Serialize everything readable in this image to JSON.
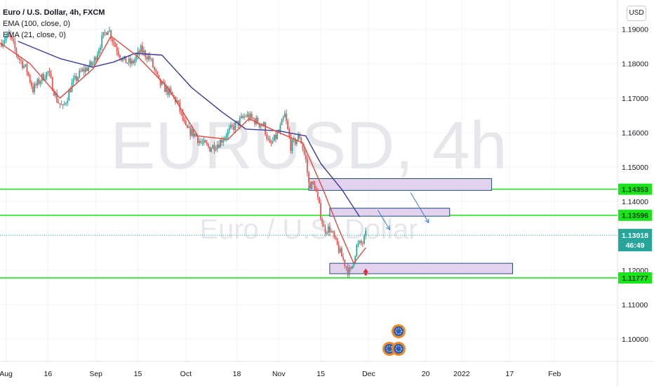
{
  "legend": {
    "symbol": "Euro / U.S. Dollar, 4h, FXCM",
    "ema_long": "EMA (100, close, 0)",
    "ema_short": "EMA (21, close, 0)"
  },
  "currency_button": "USD",
  "watermark": {
    "ticker": "EURUSD, 4h",
    "description": "Euro / U.S. Dollar"
  },
  "colors": {
    "up": "#26a69a",
    "down": "#ef5350",
    "ema100": "#3a3a9c",
    "ema21": "#e8473c",
    "levels": "#19e619",
    "zone_fill": "#e2d2ee",
    "zone_border": "#1f4e79",
    "projection": "#3b78d9",
    "current_price": "#26a69a"
  },
  "price_badges": [
    {
      "value": "1.14353",
      "level": 1.14353
    },
    {
      "value": "1.13596",
      "level": 1.13596
    },
    {
      "value": "1.11777",
      "level": 1.11777
    }
  ],
  "current_price": {
    "value": "1.13018",
    "countdown": "46:49",
    "level": 1.13018
  },
  "chart_data": {
    "type": "candlestick",
    "symbol": "EURUSD",
    "timeframe": "4h",
    "y_axis": {
      "ticks": [
        "1.19000",
        "1.18000",
        "1.17000",
        "1.16000",
        "1.15000",
        "1.14000",
        "1.13000",
        "1.12000",
        "1.11000",
        "1.10000"
      ],
      "range": [
        1.0935,
        1.1985
      ]
    },
    "x_axis": {
      "range": [
        "2021-07-31",
        "2022-02-22"
      ],
      "ticks": [
        {
          "label": "Aug",
          "date": "2021-08-02"
        },
        {
          "label": "16",
          "date": "2021-08-16"
        },
        {
          "label": "Sep",
          "date": "2021-09-01"
        },
        {
          "label": "15",
          "date": "2021-09-15"
        },
        {
          "label": "Oct",
          "date": "2021-10-01"
        },
        {
          "label": "18",
          "date": "2021-10-18"
        },
        {
          "label": "Nov",
          "date": "2021-11-01"
        },
        {
          "label": "15",
          "date": "2021-11-15"
        },
        {
          "label": "Dec",
          "date": "2021-12-01"
        },
        {
          "label": "20",
          "date": "2021-12-20"
        },
        {
          "label": "2022",
          "date": "2022-01-01"
        },
        {
          "label": "17",
          "date": "2022-01-17"
        },
        {
          "label": "Feb",
          "date": "2022-02-01"
        }
      ]
    },
    "close_path": [
      [
        "2021-07-31",
        1.186
      ],
      [
        "2021-08-03",
        1.1885
      ],
      [
        "2021-08-06",
        1.182
      ],
      [
        "2021-08-09",
        1.178
      ],
      [
        "2021-08-11",
        1.1725
      ],
      [
        "2021-08-14",
        1.176
      ],
      [
        "2021-08-16",
        1.1775
      ],
      [
        "2021-08-19",
        1.1695
      ],
      [
        "2021-08-21",
        1.167
      ],
      [
        "2021-08-24",
        1.174
      ],
      [
        "2021-08-27",
        1.1775
      ],
      [
        "2021-08-31",
        1.18
      ],
      [
        "2021-09-03",
        1.187
      ],
      [
        "2021-09-05",
        1.1905
      ],
      [
        "2021-09-07",
        1.186
      ],
      [
        "2021-09-10",
        1.181
      ],
      [
        "2021-09-13",
        1.18
      ],
      [
        "2021-09-16",
        1.184
      ],
      [
        "2021-09-19",
        1.1815
      ],
      [
        "2021-09-22",
        1.1745
      ],
      [
        "2021-09-25",
        1.172
      ],
      [
        "2021-09-28",
        1.169
      ],
      [
        "2021-10-01",
        1.161
      ],
      [
        "2021-10-04",
        1.1595
      ],
      [
        "2021-10-06",
        1.157
      ],
      [
        "2021-10-09",
        1.1555
      ],
      [
        "2021-10-12",
        1.157
      ],
      [
        "2021-10-15",
        1.16
      ],
      [
        "2021-10-18",
        1.1625
      ],
      [
        "2021-10-21",
        1.165
      ],
      [
        "2021-10-24",
        1.1635
      ],
      [
        "2021-10-27",
        1.162
      ],
      [
        "2021-10-29",
        1.156
      ],
      [
        "2021-11-01",
        1.16
      ],
      [
        "2021-11-03",
        1.165
      ],
      [
        "2021-11-05",
        1.156
      ],
      [
        "2021-11-08",
        1.159
      ],
      [
        "2021-11-10",
        1.152
      ],
      [
        "2021-11-11",
        1.145
      ],
      [
        "2021-11-13",
        1.1445
      ],
      [
        "2021-11-16",
        1.132
      ],
      [
        "2021-11-18",
        1.132
      ],
      [
        "2021-11-20",
        1.128
      ],
      [
        "2021-11-22",
        1.124
      ],
      [
        "2021-11-24",
        1.12
      ],
      [
        "2021-11-25",
        1.1195
      ],
      [
        "2021-11-27",
        1.127
      ],
      [
        "2021-11-29",
        1.128
      ],
      [
        "2021-11-30",
        1.1302
      ]
    ],
    "ema100": [
      [
        "2021-08-06",
        1.1865
      ],
      [
        "2021-08-20",
        1.1815
      ],
      [
        "2021-08-31",
        1.179
      ],
      [
        "2021-09-07",
        1.1805
      ],
      [
        "2021-09-14",
        1.183
      ],
      [
        "2021-09-23",
        1.1825
      ],
      [
        "2021-10-03",
        1.173
      ],
      [
        "2021-10-13",
        1.166
      ],
      [
        "2021-10-21",
        1.161
      ],
      [
        "2021-11-01",
        1.1605
      ],
      [
        "2021-11-10",
        1.159
      ],
      [
        "2021-11-15",
        1.151
      ],
      [
        "2021-11-22",
        1.1435
      ],
      [
        "2021-11-28",
        1.1355
      ]
    ],
    "ema21": [
      [
        "2021-07-31",
        1.186
      ],
      [
        "2021-08-10",
        1.18
      ],
      [
        "2021-08-20",
        1.17
      ],
      [
        "2021-08-31",
        1.1785
      ],
      [
        "2021-09-06",
        1.188
      ],
      [
        "2021-09-15",
        1.182
      ],
      [
        "2021-09-25",
        1.173
      ],
      [
        "2021-10-05",
        1.159
      ],
      [
        "2021-10-15",
        1.158
      ],
      [
        "2021-10-22",
        1.164
      ],
      [
        "2021-11-01",
        1.16
      ],
      [
        "2021-11-09",
        1.157
      ],
      [
        "2021-11-16",
        1.143
      ],
      [
        "2021-11-21",
        1.132
      ],
      [
        "2021-11-26",
        1.122
      ],
      [
        "2021-11-30",
        1.1265
      ]
    ],
    "horizontal_levels": [
      1.14353,
      1.13596,
      1.11777
    ],
    "zones": [
      {
        "from": "2021-11-11",
        "to": "2022-01-11",
        "top": 1.1458,
        "bottom": 1.144
      },
      {
        "from": "2021-11-18",
        "to": "2021-12-28",
        "top": 1.1372,
        "bottom": 1.1365
      },
      {
        "from": "2021-11-18",
        "to": "2022-01-18",
        "top": 1.1212,
        "bottom": 1.1198
      }
    ],
    "projection_arrows": [
      {
        "from": [
          "2021-12-04",
          1.1375
        ],
        "to": [
          "2021-12-08",
          1.1318
        ]
      },
      {
        "from": [
          "2021-12-15",
          1.1425
        ],
        "to": [
          "2021-12-21",
          1.1338
        ]
      }
    ],
    "marker": {
      "type": "up-arrow",
      "date": "2021-11-30",
      "price": 1.1193
    }
  }
}
